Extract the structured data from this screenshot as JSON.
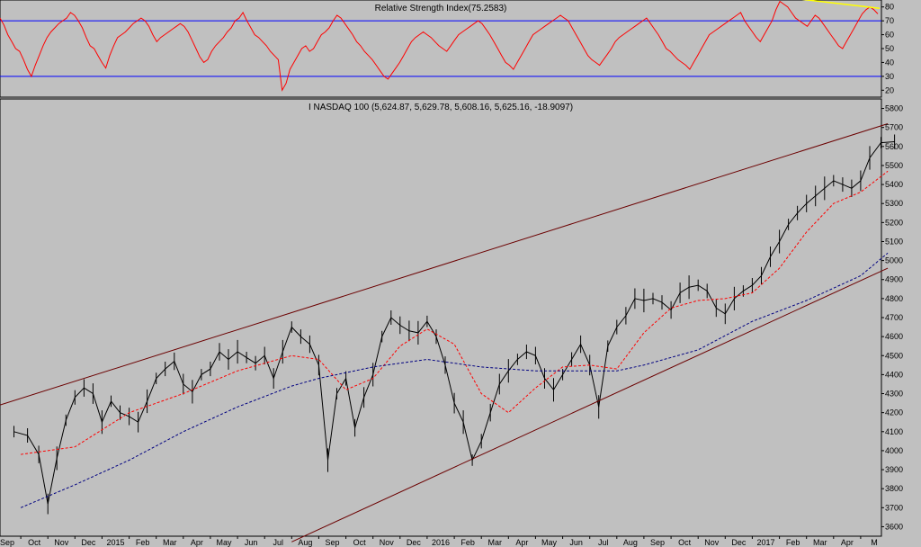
{
  "chart_data": [
    {
      "type": "line",
      "title": "Relative Strength Index(75.2583)",
      "y_ticks": [
        "80",
        "70",
        "60",
        "50",
        "40",
        "30",
        "20"
      ],
      "ylim": [
        15,
        85
      ],
      "reference_lines": [
        70,
        30
      ],
      "series": [
        {
          "color": "#ff0000",
          "values": [
            72,
            67,
            60,
            55,
            50,
            48,
            42,
            35,
            30,
            38,
            45,
            52,
            58,
            62,
            65,
            68,
            70,
            72,
            76,
            74,
            70,
            65,
            58,
            52,
            50,
            45,
            40,
            36,
            45,
            52,
            58,
            60,
            62,
            65,
            68,
            70,
            72,
            70,
            66,
            60,
            55,
            58,
            60,
            62,
            64,
            66,
            68,
            66,
            62,
            56,
            50,
            44,
            40,
            42,
            48,
            52,
            55,
            58,
            62,
            65,
            70,
            72,
            76,
            70,
            65,
            60,
            58,
            55,
            52,
            48,
            45,
            42,
            20,
            25,
            35,
            40,
            45,
            50,
            52,
            48,
            50,
            55,
            60,
            62,
            65,
            70,
            74,
            72,
            68,
            64,
            60,
            55,
            52,
            48,
            45,
            42,
            38,
            34,
            30,
            28,
            32,
            36,
            40,
            45,
            50,
            55,
            58,
            60,
            62,
            60,
            58,
            55,
            52,
            50,
            48,
            52,
            56,
            60,
            62,
            64,
            66,
            68,
            70,
            68,
            64,
            60,
            55,
            50,
            45,
            40,
            38,
            35,
            40,
            45,
            50,
            55,
            60,
            62,
            64,
            66,
            68,
            70,
            72,
            74,
            72,
            70,
            65,
            60,
            55,
            50,
            45,
            42,
            40,
            38,
            42,
            46,
            50,
            55,
            58,
            60,
            62,
            64,
            66,
            68,
            70,
            72,
            68,
            64,
            60,
            55,
            50,
            48,
            45,
            42,
            40,
            38,
            35,
            40,
            45,
            50,
            55,
            60,
            62,
            64,
            66,
            68,
            70,
            72,
            74,
            76,
            70,
            66,
            62,
            58,
            55,
            60,
            65,
            70,
            78,
            84,
            82,
            80,
            76,
            72,
            70,
            68,
            66,
            70,
            74,
            72,
            68,
            64,
            60,
            56,
            52,
            50,
            55,
            60,
            65,
            70,
            75,
            78,
            80,
            78,
            75
          ]
        }
      ],
      "trendline": {
        "color": "#ffff00",
        "x_range": [
          "Feb 2017",
          "May 2017"
        ],
        "y_range": [
          86,
          79
        ]
      }
    },
    {
      "type": "bar",
      "title": "I NASDAQ 100 (5,624.87, 5,629.78, 5,608.16, 5,625.16, -18.9097)",
      "x_tick_labels": [
        "Sep",
        "Oct",
        "Nov",
        "Dec",
        "2015",
        "Feb",
        "Mar",
        "Apr",
        "May",
        "Jun",
        "Jul",
        "Aug",
        "Sep",
        "Oct",
        "Nov",
        "Dec",
        "2016",
        "Feb",
        "Mar",
        "Apr",
        "May",
        "Jun",
        "Jul",
        "Aug",
        "Sep",
        "Oct",
        "Nov",
        "Dec",
        "2017",
        "Feb",
        "Mar",
        "Apr",
        "M"
      ],
      "y_ticks": [
        "5800",
        "5700",
        "5600",
        "5500",
        "5400",
        "5300",
        "5200",
        "5100",
        "5000",
        "4900",
        "4800",
        "4700",
        "4600",
        "4500",
        "4400",
        "4300",
        "4200",
        "4100",
        "4000",
        "3900",
        "3800",
        "3700",
        "3600"
      ],
      "ylim": [
        3550,
        5850
      ],
      "close_points": [
        [
          "Sep 2014",
          4100
        ],
        [
          "Sep 2014",
          4080
        ],
        [
          "Oct 2014",
          3980
        ],
        [
          "Oct 2014",
          3720
        ],
        [
          "Oct 2014",
          3960
        ],
        [
          "Nov 2014",
          4160
        ],
        [
          "Nov 2014",
          4280
        ],
        [
          "Nov 2014",
          4330
        ],
        [
          "Dec 2014",
          4300
        ],
        [
          "Dec 2014",
          4150
        ],
        [
          "Dec 2014",
          4260
        ],
        [
          "Jan 2015",
          4200
        ],
        [
          "Jan 2015",
          4180
        ],
        [
          "Jan 2015",
          4150
        ],
        [
          "Feb 2015",
          4260
        ],
        [
          "Feb 2015",
          4380
        ],
        [
          "Feb 2015",
          4430
        ],
        [
          "Mar 2015",
          4470
        ],
        [
          "Mar 2015",
          4350
        ],
        [
          "Mar 2015",
          4310
        ],
        [
          "Apr 2015",
          4400
        ],
        [
          "Apr 2015",
          4430
        ],
        [
          "Apr 2015",
          4520
        ],
        [
          "May 2015",
          4480
        ],
        [
          "May 2015",
          4520
        ],
        [
          "May 2015",
          4490
        ],
        [
          "Jun 2015",
          4460
        ],
        [
          "Jun 2015",
          4500
        ],
        [
          "Jun 2015",
          4380
        ],
        [
          "Jul 2015",
          4520
        ],
        [
          "Jul 2015",
          4650
        ],
        [
          "Jul 2015",
          4600
        ],
        [
          "Aug 2015",
          4560
        ],
        [
          "Aug 2015",
          4450
        ],
        [
          "Aug 2015",
          3950
        ],
        [
          "Sep 2015",
          4300
        ],
        [
          "Sep 2015",
          4380
        ],
        [
          "Sep 2015",
          4120
        ],
        [
          "Oct 2015",
          4280
        ],
        [
          "Oct 2015",
          4400
        ],
        [
          "Oct 2015",
          4600
        ],
        [
          "Nov 2015",
          4700
        ],
        [
          "Nov 2015",
          4660
        ],
        [
          "Nov 2015",
          4630
        ],
        [
          "Dec 2015",
          4620
        ],
        [
          "Dec 2015",
          4680
        ],
        [
          "Dec 2015",
          4600
        ],
        [
          "Jan 2016",
          4450
        ],
        [
          "Jan 2016",
          4250
        ],
        [
          "Jan 2016",
          4150
        ],
        [
          "Feb 2016",
          3950
        ],
        [
          "Feb 2016",
          4050
        ],
        [
          "Feb 2016",
          4200
        ],
        [
          "Mar 2016",
          4350
        ],
        [
          "Mar 2016",
          4420
        ],
        [
          "Mar 2016",
          4480
        ],
        [
          "Apr 2016",
          4520
        ],
        [
          "Apr 2016",
          4500
        ],
        [
          "Apr 2016",
          4380
        ],
        [
          "May 2016",
          4320
        ],
        [
          "May 2016",
          4400
        ],
        [
          "May 2016",
          4480
        ],
        [
          "Jun 2016",
          4560
        ],
        [
          "Jun 2016",
          4450
        ],
        [
          "Jun 2016",
          4230
        ],
        [
          "Jul 2016",
          4550
        ],
        [
          "Jul 2016",
          4650
        ],
        [
          "Jul 2016",
          4710
        ],
        [
          "Aug 2016",
          4800
        ],
        [
          "Aug 2016",
          4790
        ],
        [
          "Aug 2016",
          4800
        ],
        [
          "Sep 2016",
          4780
        ],
        [
          "Sep 2016",
          4740
        ],
        [
          "Sep 2016",
          4830
        ],
        [
          "Oct 2016",
          4860
        ],
        [
          "Oct 2016",
          4870
        ],
        [
          "Oct 2016",
          4840
        ],
        [
          "Nov 2016",
          4750
        ],
        [
          "Nov 2016",
          4720
        ],
        [
          "Nov 2016",
          4800
        ],
        [
          "Dec 2016",
          4840
        ],
        [
          "Dec 2016",
          4870
        ],
        [
          "Dec 2016",
          4920
        ],
        [
          "Jan 2017",
          5020
        ],
        [
          "Jan 2017",
          5100
        ],
        [
          "Jan 2017",
          5190
        ],
        [
          "Feb 2017",
          5250
        ],
        [
          "Feb 2017",
          5300
        ],
        [
          "Feb 2017",
          5340
        ],
        [
          "Mar 2017",
          5380
        ],
        [
          "Mar 2017",
          5420
        ],
        [
          "Mar 2017",
          5400
        ],
        [
          "Apr 2017",
          5380
        ],
        [
          "Apr 2017",
          5420
        ],
        [
          "Apr 2017",
          5540
        ],
        [
          "May 2017",
          5620
        ],
        [
          "May 2017",
          5625
        ]
      ],
      "moving_averages": [
        {
          "color": "#ff0000",
          "values": [
            [
              "Sep 2014",
              3980
            ],
            [
              "Nov 2014",
              4020
            ],
            [
              "Jan 2015",
              4200
            ],
            [
              "Mar 2015",
              4300
            ],
            [
              "May 2015",
              4420
            ],
            [
              "Jul 2015",
              4500
            ],
            [
              "Aug 2015",
              4480
            ],
            [
              "Sep 2015",
              4320
            ],
            [
              "Oct 2015",
              4380
            ],
            [
              "Nov 2015",
              4550
            ],
            [
              "Dec 2015",
              4640
            ],
            [
              "Jan 2016",
              4560
            ],
            [
              "Feb 2016",
              4300
            ],
            [
              "Mar 2016",
              4200
            ],
            [
              "Apr 2016",
              4330
            ],
            [
              "May 2016",
              4440
            ],
            [
              "Jun 2016",
              4450
            ],
            [
              "Jul 2016",
              4430
            ],
            [
              "Aug 2016",
              4620
            ],
            [
              "Sep 2016",
              4750
            ],
            [
              "Oct 2016",
              4790
            ],
            [
              "Nov 2016",
              4800
            ],
            [
              "Dec 2016",
              4830
            ],
            [
              "Jan 2017",
              4960
            ],
            [
              "Feb 2017",
              5150
            ],
            [
              "Mar 2017",
              5300
            ],
            [
              "Apr 2017",
              5360
            ],
            [
              "May 2017",
              5470
            ]
          ]
        },
        {
          "color": "#000080",
          "values": [
            [
              "Sep 2014",
              3700
            ],
            [
              "Nov 2014",
              3820
            ],
            [
              "Jan 2015",
              3950
            ],
            [
              "Mar 2015",
              4100
            ],
            [
              "May 2015",
              4230
            ],
            [
              "Jul 2015",
              4340
            ],
            [
              "Aug 2015",
              4380
            ],
            [
              "Oct 2015",
              4440
            ],
            [
              "Dec 2015",
              4480
            ],
            [
              "Feb 2016",
              4440
            ],
            [
              "Apr 2016",
              4420
            ],
            [
              "Jun 2016",
              4420
            ],
            [
              "Jul 2016",
              4420
            ],
            [
              "Aug 2016",
              4450
            ],
            [
              "Oct 2016",
              4530
            ],
            [
              "Dec 2016",
              4680
            ],
            [
              "Feb 2017",
              4790
            ],
            [
              "Apr 2017",
              4920
            ],
            [
              "May 2017",
              5040
            ]
          ]
        }
      ],
      "trendlines": [
        {
          "color": "#6b0000",
          "points": [
            [
              "Sep 2014",
              4240
            ],
            [
              "May 2017",
              5720
            ]
          ]
        },
        {
          "color": "#6b0000",
          "points": [
            [
              "Jul 2015",
              3520
            ],
            [
              "May 2017",
              4960
            ]
          ]
        }
      ]
    }
  ]
}
